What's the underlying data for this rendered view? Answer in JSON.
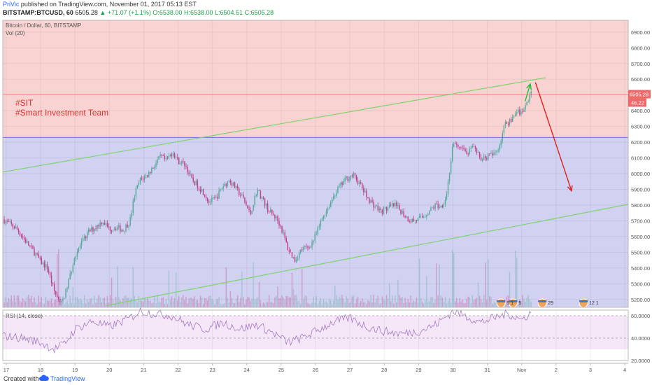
{
  "header": {
    "author": "PriVic",
    "published": "published on TradingView.com, November 01, 2017 05:13 EST",
    "symbol": "BITSTAMP:BTCUSD, 60",
    "last": "6505.28",
    "change": "▲ +71.07 (+1.1%)",
    "open": "O:6538.00",
    "high": "H:6538.00",
    "low": "L:6504.51",
    "close": "C:6505.28"
  },
  "footer": {
    "created_with": "Created with",
    "brand": "TradingView"
  },
  "chart_data": {
    "type": "candlestick",
    "title": "Bitcoin / Dollar, 60, BITSTAMP",
    "volume_label": "Vol (20)",
    "annotation_lines": [
      "#SIT",
      "#Smart Investment Team"
    ],
    "x_ticks": [
      "17",
      "18",
      "19",
      "20",
      "21",
      "22",
      "23",
      "24",
      "25",
      "26",
      "27",
      "28",
      "29",
      "30",
      "31",
      "Nov",
      "2",
      "3",
      "4"
    ],
    "y_ticks": [
      5200,
      5300,
      5400,
      5500,
      5600,
      5700,
      5800,
      5900,
      6000,
      6100,
      6200,
      6300,
      6400,
      6500,
      6600,
      6700,
      6800,
      6900
    ],
    "y_tick_labels": [
      "5200.00",
      "5300.00",
      "5400.00",
      "5500.00",
      "5600.00",
      "5700.00",
      "5800.00",
      "5900.00",
      "6000.00",
      "6100.00",
      "6200.00",
      "6300.00",
      "6400.00",
      "6500.00",
      "6600.00",
      "6700.00",
      "6800.00",
      "6900.00"
    ],
    "ylim": [
      5150,
      6975
    ],
    "xlim": [
      16.9,
      35.1
    ],
    "price_path": [
      [
        16.9,
        5710
      ],
      [
        17.3,
        5650
      ],
      [
        17.6,
        5560
      ],
      [
        17.85,
        5490
      ],
      [
        18.0,
        5440
      ],
      [
        18.2,
        5400
      ],
      [
        18.4,
        5250
      ],
      [
        18.6,
        5170
      ],
      [
        18.75,
        5260
      ],
      [
        18.9,
        5390
      ],
      [
        19.0,
        5480
      ],
      [
        19.2,
        5560
      ],
      [
        19.4,
        5630
      ],
      [
        19.6,
        5660
      ],
      [
        19.8,
        5700
      ],
      [
        20.0,
        5650
      ],
      [
        20.2,
        5660
      ],
      [
        20.4,
        5640
      ],
      [
        20.6,
        5700
      ],
      [
        20.75,
        5880
      ],
      [
        20.9,
        5960
      ],
      [
        21.1,
        5990
      ],
      [
        21.3,
        6050
      ],
      [
        21.5,
        6110
      ],
      [
        21.65,
        6080
      ],
      [
        21.85,
        6140
      ],
      [
        22.0,
        6080
      ],
      [
        22.2,
        6060
      ],
      [
        22.4,
        5960
      ],
      [
        22.55,
        5930
      ],
      [
        22.75,
        5880
      ],
      [
        22.9,
        5820
      ],
      [
        23.1,
        5840
      ],
      [
        23.3,
        5920
      ],
      [
        23.5,
        5960
      ],
      [
        23.7,
        5900
      ],
      [
        23.9,
        5840
      ],
      [
        24.1,
        5740
      ],
      [
        24.3,
        5900
      ],
      [
        24.5,
        5820
      ],
      [
        24.65,
        5760
      ],
      [
        24.85,
        5720
      ],
      [
        25.0,
        5660
      ],
      [
        25.2,
        5520
      ],
      [
        25.4,
        5450
      ],
      [
        25.6,
        5520
      ],
      [
        25.8,
        5530
      ],
      [
        26.0,
        5600
      ],
      [
        26.2,
        5720
      ],
      [
        26.4,
        5800
      ],
      [
        26.55,
        5870
      ],
      [
        26.75,
        5930
      ],
      [
        26.9,
        5970
      ],
      [
        27.1,
        5990
      ],
      [
        27.3,
        5930
      ],
      [
        27.5,
        5850
      ],
      [
        27.7,
        5800
      ],
      [
        27.9,
        5760
      ],
      [
        28.1,
        5780
      ],
      [
        28.3,
        5800
      ],
      [
        28.5,
        5760
      ],
      [
        28.7,
        5710
      ],
      [
        28.9,
        5700
      ],
      [
        29.1,
        5720
      ],
      [
        29.3,
        5760
      ],
      [
        29.5,
        5800
      ],
      [
        29.65,
        5790
      ],
      [
        29.8,
        5850
      ],
      [
        30.0,
        6180
      ],
      [
        30.2,
        6160
      ],
      [
        30.4,
        6130
      ],
      [
        30.6,
        6160
      ],
      [
        30.8,
        6100
      ],
      [
        31.0,
        6110
      ],
      [
        31.2,
        6120
      ],
      [
        31.35,
        6180
      ],
      [
        31.5,
        6310
      ],
      [
        31.7,
        6350
      ],
      [
        31.85,
        6400
      ],
      [
        32.0,
        6380
      ],
      [
        32.15,
        6450
      ],
      [
        32.3,
        6540
      ]
    ],
    "horizontal_level": 6230,
    "last_price": 6505.28,
    "last_price_label": "6505.28",
    "volume_badge": "46.22",
    "channel_upper": [
      [
        16.9,
        6010
      ],
      [
        32.7,
        6610
      ]
    ],
    "channel_lower": [
      [
        19.9,
        5160
      ],
      [
        35.1,
        5805
      ]
    ],
    "forecast_arrow": [
      [
        32.4,
        6580
      ],
      [
        33.45,
        5890
      ]
    ],
    "small_arrow": [
      [
        32.1,
        6460
      ],
      [
        32.25,
        6570
      ]
    ],
    "event_badges": [
      {
        "x": 31.4,
        "label": "5 1"
      },
      {
        "x": 31.75,
        "label": "5"
      },
      {
        "x": 32.6,
        "label": "29"
      },
      {
        "x": 33.8,
        "label": "12 1"
      }
    ],
    "rsi": {
      "label": "RSI (14, close)",
      "ylim": [
        20,
        65
      ],
      "ticks": [
        20,
        40,
        60
      ],
      "tick_labels": [
        "20.0000",
        "40.0000",
        "60.0000"
      ],
      "overbought": 70,
      "oversold": 30,
      "path": [
        [
          16.9,
          42
        ],
        [
          17.5,
          40
        ],
        [
          18.0,
          36
        ],
        [
          18.4,
          30
        ],
        [
          18.7,
          35
        ],
        [
          19.0,
          48
        ],
        [
          19.5,
          55
        ],
        [
          20.0,
          50
        ],
        [
          20.6,
          58
        ],
        [
          20.9,
          64
        ],
        [
          21.3,
          62
        ],
        [
          21.8,
          60
        ],
        [
          22.3,
          52
        ],
        [
          22.8,
          48
        ],
        [
          23.3,
          54
        ],
        [
          23.8,
          48
        ],
        [
          24.3,
          52
        ],
        [
          24.8,
          44
        ],
        [
          25.2,
          36
        ],
        [
          25.6,
          40
        ],
        [
          26.0,
          46
        ],
        [
          26.5,
          54
        ],
        [
          27.0,
          58
        ],
        [
          27.5,
          50
        ],
        [
          28.0,
          46
        ],
        [
          28.5,
          44
        ],
        [
          29.0,
          46
        ],
        [
          29.5,
          52
        ],
        [
          30.0,
          64
        ],
        [
          30.5,
          58
        ],
        [
          30.8,
          54
        ],
        [
          31.2,
          58
        ],
        [
          31.6,
          62
        ],
        [
          32.0,
          56
        ],
        [
          32.3,
          64
        ]
      ]
    },
    "colors": {
      "upper_zone": "#f9d3d1",
      "lower_zone": "#d1d1f2",
      "channel": "#7ed36d",
      "horizontal": "#6c6cee",
      "forecast": "#e02020",
      "small_arrow": "#22bb33",
      "candle_up": "#55a99a",
      "candle_down": "#c2408a",
      "rsi_line": "#a27ac0",
      "rsi_band": "#f5e6f8",
      "price_label_bg": "#ee6a6a",
      "annotation": "#e03030"
    }
  }
}
